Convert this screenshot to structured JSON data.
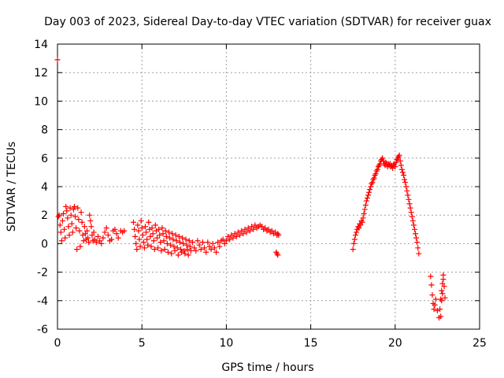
{
  "chart_data": {
    "type": "scatter",
    "title": "Day 003 of 2023, Sidereal Day-to-day VTEC variation (SDTVAR) for receiver guax",
    "xlabel": "GPS time / hours",
    "ylabel": "SDTVAR / TECUs",
    "xlim": [
      0,
      25
    ],
    "ylim": [
      -6,
      14
    ],
    "xticks": [
      0,
      5,
      10,
      15,
      20,
      25
    ],
    "yticks": [
      -6,
      -4,
      -2,
      0,
      2,
      4,
      6,
      8,
      10,
      12,
      14
    ],
    "grid": true,
    "marker": "+",
    "color": "#ff0000",
    "series": [
      {
        "name": "guax",
        "points": [
          [
            0.0,
            12.9
          ],
          [
            0.05,
            1.9
          ],
          [
            0.1,
            2.0
          ],
          [
            0.15,
            1.3
          ],
          [
            0.2,
            0.8
          ],
          [
            0.25,
            0.2
          ],
          [
            0.3,
            1.6
          ],
          [
            0.35,
            2.1
          ],
          [
            0.4,
            1.0
          ],
          [
            0.45,
            0.4
          ],
          [
            0.5,
            2.6
          ],
          [
            0.55,
            2.3
          ],
          [
            0.6,
            1.8
          ],
          [
            0.65,
            1.2
          ],
          [
            0.7,
            0.6
          ],
          [
            0.75,
            2.5
          ],
          [
            0.8,
            2.0
          ],
          [
            0.85,
            1.4
          ],
          [
            0.9,
            0.8
          ],
          [
            0.95,
            2.4
          ],
          [
            1.0,
            2.6
          ],
          [
            1.05,
            1.9
          ],
          [
            1.1,
            1.1
          ],
          [
            1.15,
            -0.4
          ],
          [
            1.2,
            2.5
          ],
          [
            1.25,
            1.7
          ],
          [
            1.3,
            0.9
          ],
          [
            1.35,
            -0.2
          ],
          [
            1.4,
            2.2
          ],
          [
            1.45,
            1.5
          ],
          [
            1.5,
            0.6
          ],
          [
            1.55,
            0.2
          ],
          [
            1.6,
            1.2
          ],
          [
            1.65,
            0.7
          ],
          [
            1.7,
            0.3
          ],
          [
            1.75,
            0.9
          ],
          [
            1.8,
            0.4
          ],
          [
            1.85,
            0.1
          ],
          [
            1.9,
            2.0
          ],
          [
            1.95,
            1.6
          ],
          [
            2.0,
            1.2
          ],
          [
            2.05,
            0.6
          ],
          [
            2.1,
            0.2
          ],
          [
            2.15,
            0.8
          ],
          [
            2.2,
            0.3
          ],
          [
            2.3,
            0.1
          ],
          [
            2.4,
            0.5
          ],
          [
            2.5,
            0.2
          ],
          [
            2.6,
            0.0
          ],
          [
            2.7,
            0.4
          ],
          [
            2.8,
            0.8
          ],
          [
            2.9,
            1.1
          ],
          [
            3.0,
            0.6
          ],
          [
            3.1,
            0.2
          ],
          [
            3.2,
            0.3
          ],
          [
            3.3,
            0.9
          ],
          [
            3.4,
            1.0
          ],
          [
            3.5,
            0.7
          ],
          [
            3.6,
            0.4
          ],
          [
            3.75,
            0.9
          ],
          [
            3.85,
            0.8
          ],
          [
            3.95,
            0.9
          ],
          [
            4.5,
            1.5
          ],
          [
            4.55,
            1.0
          ],
          [
            4.6,
            0.5
          ],
          [
            4.65,
            0.0
          ],
          [
            4.7,
            -0.4
          ],
          [
            4.75,
            1.3
          ],
          [
            4.8,
            0.9
          ],
          [
            4.85,
            0.3
          ],
          [
            4.9,
            -0.2
          ],
          [
            4.95,
            1.6
          ],
          [
            5.0,
            1.1
          ],
          [
            5.05,
            0.6
          ],
          [
            5.1,
            0.1
          ],
          [
            5.15,
            -0.3
          ],
          [
            5.2,
            1.2
          ],
          [
            5.25,
            0.8
          ],
          [
            5.3,
            0.3
          ],
          [
            5.35,
            -0.1
          ],
          [
            5.4,
            1.5
          ],
          [
            5.45,
            1.0
          ],
          [
            5.5,
            0.5
          ],
          [
            5.55,
            -0.2
          ],
          [
            5.6,
            1.1
          ],
          [
            5.65,
            0.7
          ],
          [
            5.7,
            0.2
          ],
          [
            5.75,
            -0.4
          ],
          [
            5.8,
            1.3
          ],
          [
            5.85,
            0.9
          ],
          [
            5.9,
            0.4
          ],
          [
            5.95,
            -0.3
          ],
          [
            6.0,
            1.0
          ],
          [
            6.05,
            0.6
          ],
          [
            6.1,
            0.1
          ],
          [
            6.15,
            -0.5
          ],
          [
            6.2,
            1.1
          ],
          [
            6.25,
            0.7
          ],
          [
            6.3,
            0.2
          ],
          [
            6.35,
            -0.4
          ],
          [
            6.4,
            0.9
          ],
          [
            6.45,
            0.5
          ],
          [
            6.5,
            0.0
          ],
          [
            6.55,
            -0.6
          ],
          [
            6.6,
            0.8
          ],
          [
            6.65,
            0.4
          ],
          [
            6.7,
            -0.1
          ],
          [
            6.75,
            -0.7
          ],
          [
            6.8,
            0.7
          ],
          [
            6.85,
            0.3
          ],
          [
            6.9,
            -0.2
          ],
          [
            6.95,
            -0.5
          ],
          [
            7.0,
            0.6
          ],
          [
            7.05,
            0.2
          ],
          [
            7.1,
            -0.3
          ],
          [
            7.15,
            -0.8
          ],
          [
            7.2,
            0.5
          ],
          [
            7.25,
            0.1
          ],
          [
            7.3,
            -0.4
          ],
          [
            7.35,
            -0.6
          ],
          [
            7.4,
            0.4
          ],
          [
            7.45,
            0.0
          ],
          [
            7.5,
            -0.5
          ],
          [
            7.55,
            -0.7
          ],
          [
            7.6,
            0.3
          ],
          [
            7.65,
            -0.1
          ],
          [
            7.7,
            -0.4
          ],
          [
            7.75,
            -0.8
          ],
          [
            7.8,
            0.2
          ],
          [
            7.85,
            -0.2
          ],
          [
            7.9,
            -0.5
          ],
          [
            8.0,
            0.1
          ],
          [
            8.1,
            -0.3
          ],
          [
            8.2,
            -0.5
          ],
          [
            8.3,
            0.2
          ],
          [
            8.4,
            -0.1
          ],
          [
            8.5,
            -0.4
          ],
          [
            8.6,
            0.1
          ],
          [
            8.7,
            -0.3
          ],
          [
            8.8,
            -0.6
          ],
          [
            8.9,
            0.1
          ],
          [
            9.0,
            -0.2
          ],
          [
            9.1,
            -0.4
          ],
          [
            9.2,
            0.0
          ],
          [
            9.3,
            -0.3
          ],
          [
            9.4,
            -0.6
          ],
          [
            9.5,
            0.1
          ],
          [
            9.6,
            -0.2
          ],
          [
            9.7,
            0.2
          ],
          [
            9.8,
            0.3
          ],
          [
            9.9,
            0.0
          ],
          [
            10.0,
            0.2
          ],
          [
            10.1,
            0.5
          ],
          [
            10.2,
            0.3
          ],
          [
            10.3,
            0.6
          ],
          [
            10.4,
            0.4
          ],
          [
            10.5,
            0.7
          ],
          [
            10.6,
            0.5
          ],
          [
            10.7,
            0.8
          ],
          [
            10.8,
            0.6
          ],
          [
            10.9,
            0.9
          ],
          [
            11.0,
            0.7
          ],
          [
            11.1,
            1.0
          ],
          [
            11.2,
            0.8
          ],
          [
            11.3,
            1.1
          ],
          [
            11.4,
            0.9
          ],
          [
            11.5,
            1.2
          ],
          [
            11.6,
            1.0
          ],
          [
            11.7,
            1.3
          ],
          [
            11.8,
            1.1
          ],
          [
            11.9,
            1.2
          ],
          [
            12.0,
            1.3
          ],
          [
            12.1,
            1.2
          ],
          [
            12.2,
            1.0
          ],
          [
            12.3,
            1.1
          ],
          [
            12.4,
            0.9
          ],
          [
            12.5,
            1.0
          ],
          [
            12.6,
            0.8
          ],
          [
            12.7,
            0.9
          ],
          [
            12.8,
            0.7
          ],
          [
            12.9,
            0.8
          ],
          [
            13.0,
            0.6
          ],
          [
            13.05,
            0.7
          ],
          [
            13.1,
            0.6
          ],
          [
            13.0,
            -0.7
          ],
          [
            13.05,
            -0.8
          ],
          [
            12.95,
            -0.6
          ],
          [
            17.5,
            -0.4
          ],
          [
            17.55,
            0.0
          ],
          [
            17.6,
            0.3
          ],
          [
            17.65,
            0.6
          ],
          [
            17.7,
            0.8
          ],
          [
            17.75,
            1.0
          ],
          [
            17.8,
            1.2
          ],
          [
            17.85,
            1.1
          ],
          [
            17.9,
            1.4
          ],
          [
            17.95,
            1.3
          ],
          [
            18.0,
            1.6
          ],
          [
            18.05,
            1.5
          ],
          [
            18.1,
            1.8
          ],
          [
            18.15,
            2.1
          ],
          [
            18.2,
            2.4
          ],
          [
            18.25,
            2.7
          ],
          [
            18.3,
            3.0
          ],
          [
            18.35,
            3.2
          ],
          [
            18.4,
            3.4
          ],
          [
            18.45,
            3.6
          ],
          [
            18.5,
            3.8
          ],
          [
            18.55,
            4.0
          ],
          [
            18.6,
            4.2
          ],
          [
            18.65,
            4.3
          ],
          [
            18.7,
            4.5
          ],
          [
            18.75,
            4.6
          ],
          [
            18.8,
            4.8
          ],
          [
            18.85,
            4.9
          ],
          [
            18.9,
            5.1
          ],
          [
            18.95,
            5.2
          ],
          [
            19.0,
            5.4
          ],
          [
            19.05,
            5.5
          ],
          [
            19.1,
            5.6
          ],
          [
            19.15,
            5.8
          ],
          [
            19.2,
            5.9
          ],
          [
            19.25,
            6.0
          ],
          [
            19.3,
            5.8
          ],
          [
            19.35,
            5.6
          ],
          [
            19.4,
            5.5
          ],
          [
            19.45,
            5.7
          ],
          [
            19.5,
            5.6
          ],
          [
            19.55,
            5.4
          ],
          [
            19.6,
            5.6
          ],
          [
            19.65,
            5.5
          ],
          [
            19.7,
            5.6
          ],
          [
            19.75,
            5.4
          ],
          [
            19.8,
            5.5
          ],
          [
            19.85,
            5.3
          ],
          [
            19.9,
            5.5
          ],
          [
            19.95,
            5.6
          ],
          [
            20.0,
            5.4
          ],
          [
            20.05,
            5.7
          ],
          [
            20.1,
            5.9
          ],
          [
            20.15,
            6.0
          ],
          [
            20.2,
            6.1
          ],
          [
            20.25,
            6.2
          ],
          [
            20.3,
            5.8
          ],
          [
            20.35,
            5.5
          ],
          [
            20.4,
            5.2
          ],
          [
            20.45,
            5.0
          ],
          [
            20.5,
            4.8
          ],
          [
            20.55,
            4.5
          ],
          [
            20.6,
            4.3
          ],
          [
            20.65,
            4.0
          ],
          [
            20.7,
            3.7
          ],
          [
            20.75,
            3.4
          ],
          [
            20.8,
            3.1
          ],
          [
            20.85,
            2.8
          ],
          [
            20.9,
            2.5
          ],
          [
            20.95,
            2.2
          ],
          [
            21.0,
            1.9
          ],
          [
            21.05,
            1.6
          ],
          [
            21.1,
            1.3
          ],
          [
            21.15,
            1.0
          ],
          [
            21.2,
            0.7
          ],
          [
            21.25,
            0.4
          ],
          [
            21.3,
            0.1
          ],
          [
            21.35,
            -0.3
          ],
          [
            21.4,
            -0.7
          ],
          [
            22.1,
            -2.3
          ],
          [
            22.15,
            -2.9
          ],
          [
            22.2,
            -3.6
          ],
          [
            22.25,
            -4.2
          ],
          [
            22.3,
            -4.6
          ],
          [
            22.35,
            -4.3
          ],
          [
            22.4,
            -3.9
          ],
          [
            22.5,
            -4.7
          ],
          [
            22.6,
            -5.2
          ],
          [
            22.65,
            -4.6
          ],
          [
            22.7,
            -3.9
          ],
          [
            22.75,
            -3.3
          ],
          [
            22.8,
            -2.8
          ],
          [
            22.85,
            -2.2
          ],
          [
            22.9,
            -3.0
          ],
          [
            22.95,
            -3.8
          ],
          [
            22.7,
            -5.1
          ],
          [
            22.75,
            -4.0
          ],
          [
            22.8,
            -3.5
          ],
          [
            22.85,
            -2.5
          ]
        ]
      }
    ]
  }
}
